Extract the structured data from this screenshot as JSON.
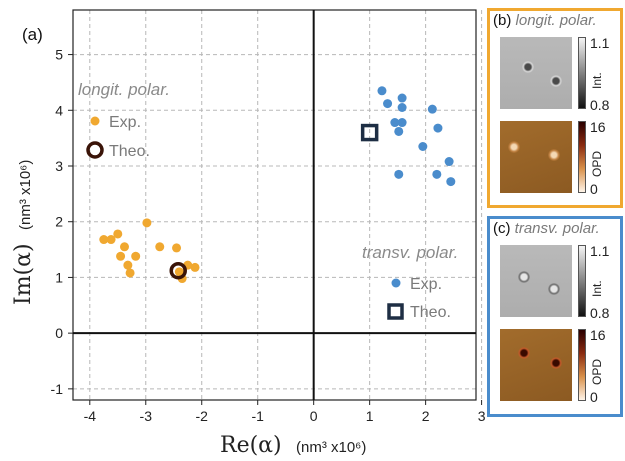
{
  "chart_data": {
    "type": "scatter",
    "panel_letter": "(a)",
    "xlabel": "Re(α)",
    "xlabel_unit": "(nm³ x10⁶)",
    "ylabel": "Im(α)",
    "ylabel_unit": "(nm³ x10⁶)",
    "xlim": [
      -4.3,
      2.9
    ],
    "ylim": [
      -1.2,
      5.8
    ],
    "xticks": [
      -4,
      -3,
      -2,
      -1,
      0,
      1,
      2,
      3
    ],
    "yticks": [
      -1,
      0,
      1,
      2,
      3,
      4,
      5
    ],
    "grid": true,
    "annotations": {
      "longitudinal": {
        "title": "longit. polar.",
        "exp_label": "Exp.",
        "theo_label": "Theo."
      },
      "transverse": {
        "title": "transv. polar.",
        "exp_label": "Exp.",
        "theo_label": "Theo."
      }
    },
    "series": [
      {
        "group": "longitudinal",
        "kind": "experiment",
        "color": "#f0a830",
        "points": [
          [
            -3.75,
            1.68
          ],
          [
            -3.62,
            1.68
          ],
          [
            -3.5,
            1.78
          ],
          [
            -3.38,
            1.55
          ],
          [
            -3.45,
            1.38
          ],
          [
            -3.32,
            1.22
          ],
          [
            -3.18,
            1.38
          ],
          [
            -3.28,
            1.08
          ],
          [
            -2.98,
            1.98
          ],
          [
            -2.75,
            1.55
          ],
          [
            -2.45,
            1.53
          ],
          [
            -2.25,
            1.22
          ],
          [
            -2.12,
            1.18
          ],
          [
            -2.4,
            1.1
          ],
          [
            -2.35,
            0.98
          ]
        ]
      },
      {
        "group": "longitudinal",
        "kind": "theory",
        "color": "#3a1408",
        "points": [
          [
            -2.42,
            1.12
          ]
        ]
      },
      {
        "group": "transverse",
        "kind": "experiment",
        "color": "#4a8ccc",
        "points": [
          [
            1.22,
            4.35
          ],
          [
            1.32,
            4.12
          ],
          [
            1.58,
            4.22
          ],
          [
            1.58,
            4.05
          ],
          [
            2.12,
            4.02
          ],
          [
            1.45,
            3.78
          ],
          [
            1.58,
            3.78
          ],
          [
            1.52,
            3.62
          ],
          [
            2.22,
            3.68
          ],
          [
            1.95,
            3.35
          ],
          [
            2.42,
            3.08
          ],
          [
            2.2,
            2.85
          ],
          [
            2.45,
            2.72
          ],
          [
            1.52,
            2.85
          ]
        ]
      },
      {
        "group": "transverse",
        "kind": "theory",
        "color": "#1e2e44",
        "points": [
          [
            1.0,
            3.6
          ]
        ]
      }
    ]
  },
  "side_panels": {
    "b": {
      "letter": "(b)",
      "desc": "longit. polar.",
      "border_color": "#f0a830",
      "int_max": "1.1",
      "int_min": "0.8",
      "int_label": "Int.",
      "opd_max": "16",
      "opd_min": "0",
      "opd_label": "OPD"
    },
    "c": {
      "letter": "(c)",
      "desc": "transv. polar.",
      "border_color": "#4a8ccc",
      "int_max": "1.1",
      "int_min": "0.8",
      "int_label": "Int.",
      "opd_max": "16",
      "opd_min": "0",
      "opd_label": "OPD"
    }
  }
}
